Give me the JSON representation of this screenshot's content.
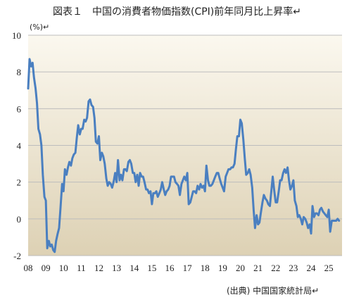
{
  "title": "図表１　中国の消費者物価指数(CPI)前年同月比上昇率↵",
  "unit_label": "(%)↵",
  "source": "(出典) 中国国家統計局↵",
  "colors": {
    "line": "#4a7fc0",
    "grid": "#bdbdbd",
    "bg_top": "#fbf8ef",
    "bg_bottom": "#ddd1b4"
  },
  "chart_data": {
    "type": "line",
    "title": "図表１　中国の消費者物価指数(CPI)前年同月比上昇率↵",
    "ylabel": "(%)↵",
    "xlabel": "",
    "ylim": [
      -2,
      10
    ],
    "yticks": [
      -2,
      0,
      2,
      4,
      6,
      8,
      10
    ],
    "xlim": [
      2008.0,
      2025.75
    ],
    "xtick_labels": [
      "08",
      "09",
      "10",
      "11",
      "12",
      "13",
      "14",
      "15",
      "16",
      "17",
      "18",
      "19",
      "20",
      "21",
      "22",
      "23",
      "24",
      "25"
    ],
    "grid": true,
    "legend": "none",
    "x": [
      2008.0,
      2008.08,
      2008.17,
      2008.25,
      2008.33,
      2008.42,
      2008.5,
      2008.58,
      2008.67,
      2008.75,
      2008.83,
      2008.92,
      2009.0,
      2009.08,
      2009.17,
      2009.25,
      2009.33,
      2009.42,
      2009.5,
      2009.58,
      2009.67,
      2009.75,
      2009.83,
      2009.92,
      2010.0,
      2010.08,
      2010.17,
      2010.25,
      2010.33,
      2010.42,
      2010.5,
      2010.58,
      2010.67,
      2010.75,
      2010.83,
      2010.92,
      2011.0,
      2011.08,
      2011.17,
      2011.25,
      2011.33,
      2011.42,
      2011.5,
      2011.58,
      2011.67,
      2011.75,
      2011.83,
      2011.92,
      2012.0,
      2012.08,
      2012.17,
      2012.25,
      2012.33,
      2012.42,
      2012.5,
      2012.58,
      2012.67,
      2012.75,
      2012.83,
      2012.92,
      2013.0,
      2013.08,
      2013.17,
      2013.25,
      2013.33,
      2013.42,
      2013.5,
      2013.58,
      2013.67,
      2013.75,
      2013.83,
      2013.92,
      2014.0,
      2014.08,
      2014.17,
      2014.25,
      2014.33,
      2014.42,
      2014.5,
      2014.58,
      2014.67,
      2014.75,
      2014.83,
      2014.92,
      2015.0,
      2015.08,
      2015.17,
      2015.25,
      2015.33,
      2015.42,
      2015.5,
      2015.58,
      2015.67,
      2015.75,
      2015.83,
      2015.92,
      2016.0,
      2016.08,
      2016.17,
      2016.25,
      2016.33,
      2016.42,
      2016.5,
      2016.58,
      2016.67,
      2016.75,
      2016.83,
      2016.92,
      2017.0,
      2017.08,
      2017.17,
      2017.25,
      2017.33,
      2017.42,
      2017.5,
      2017.58,
      2017.67,
      2017.75,
      2017.83,
      2017.92,
      2018.0,
      2018.08,
      2018.17,
      2018.25,
      2018.33,
      2018.42,
      2018.5,
      2018.58,
      2018.67,
      2018.75,
      2018.83,
      2018.92,
      2019.0,
      2019.08,
      2019.17,
      2019.25,
      2019.33,
      2019.42,
      2019.5,
      2019.58,
      2019.67,
      2019.75,
      2019.83,
      2019.92,
      2020.0,
      2020.08,
      2020.17,
      2020.25,
      2020.33,
      2020.42,
      2020.5,
      2020.58,
      2020.67,
      2020.75,
      2020.83,
      2020.92,
      2021.0,
      2021.08,
      2021.17,
      2021.25,
      2021.33,
      2021.42,
      2021.5,
      2021.58,
      2021.67,
      2021.75,
      2021.83,
      2021.92,
      2022.0,
      2022.08,
      2022.17,
      2022.25,
      2022.33,
      2022.42,
      2022.5,
      2022.58,
      2022.67,
      2022.75,
      2022.83,
      2022.92,
      2023.0,
      2023.08,
      2023.17,
      2023.25,
      2023.33,
      2023.42,
      2023.5,
      2023.58,
      2023.67,
      2023.75,
      2023.83,
      2023.92,
      2024.0,
      2024.08,
      2024.17,
      2024.25,
      2024.33,
      2024.42,
      2024.5,
      2024.58,
      2024.67,
      2024.75,
      2024.83,
      2024.92,
      2025.0,
      2025.08,
      2025.17,
      2025.25,
      2025.33,
      2025.42,
      2025.5,
      2025.58
    ],
    "series": [
      {
        "values": [
          7.1,
          8.7,
          8.3,
          8.5,
          7.7,
          7.1,
          6.3,
          4.9,
          4.6,
          4.0,
          2.4,
          1.2,
          1.0,
          -1.6,
          -1.2,
          -1.5,
          -1.4,
          -1.7,
          -1.8,
          -1.2,
          -0.8,
          -0.5,
          0.6,
          1.9,
          1.5,
          2.7,
          2.4,
          2.8,
          3.1,
          2.9,
          3.3,
          3.5,
          3.6,
          4.4,
          5.1,
          4.6,
          4.9,
          4.9,
          5.4,
          5.3,
          5.5,
          6.4,
          6.5,
          6.2,
          6.1,
          5.5,
          4.2,
          4.1,
          4.5,
          3.2,
          3.6,
          3.4,
          3.0,
          2.2,
          1.8,
          2.0,
          1.9,
          1.7,
          2.0,
          2.5,
          2.0,
          3.2,
          2.1,
          2.4,
          2.1,
          2.7,
          2.7,
          2.6,
          3.1,
          3.2,
          3.0,
          2.5,
          2.5,
          2.0,
          2.4,
          1.8,
          2.5,
          2.3,
          2.3,
          2.0,
          1.6,
          1.6,
          1.4,
          1.5,
          0.8,
          1.4,
          1.4,
          1.5,
          1.2,
          1.4,
          1.6,
          2.0,
          1.6,
          1.3,
          1.5,
          1.6,
          1.8,
          2.3,
          2.3,
          2.3,
          2.0,
          1.9,
          1.8,
          1.3,
          1.9,
          2.1,
          2.3,
          2.1,
          2.5,
          0.8,
          0.9,
          1.2,
          1.5,
          1.5,
          1.4,
          1.8,
          1.6,
          1.9,
          1.7,
          1.8,
          1.5,
          2.9,
          2.1,
          1.8,
          1.8,
          1.9,
          2.1,
          2.3,
          2.5,
          2.5,
          2.2,
          1.9,
          1.7,
          1.5,
          2.3,
          2.5,
          2.7,
          2.7,
          2.8,
          2.8,
          3.0,
          3.8,
          4.5,
          4.5,
          5.4,
          5.2,
          4.3,
          3.3,
          2.4,
          2.5,
          2.7,
          2.4,
          1.7,
          0.5,
          -0.5,
          0.2,
          -0.3,
          -0.2,
          0.4,
          0.9,
          1.3,
          1.1,
          1.0,
          0.8,
          0.7,
          1.5,
          2.3,
          1.5,
          0.9,
          0.9,
          1.5,
          2.1,
          2.1,
          2.5,
          2.7,
          2.5,
          2.8,
          2.1,
          1.6,
          1.8,
          2.1,
          1.0,
          0.7,
          0.1,
          0.2,
          0.0,
          -0.3,
          0.1,
          0.0,
          -0.2,
          -0.5,
          -0.3,
          -0.8,
          0.7,
          0.1,
          0.3,
          0.3,
          0.2,
          0.5,
          0.6,
          0.4,
          0.3,
          0.2,
          0.1,
          0.5,
          -0.7,
          -0.1,
          -0.1,
          -0.1,
          -0.1,
          0.0,
          -0.1
        ]
      }
    ]
  }
}
